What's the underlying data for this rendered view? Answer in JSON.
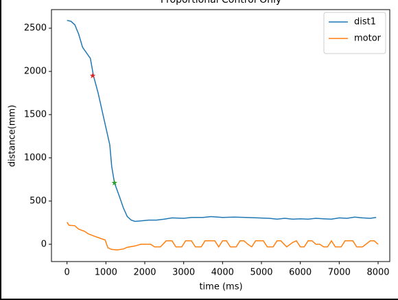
{
  "chart_data": {
    "type": "line",
    "title": "Proportional Control Only",
    "xlabel": "time (ms)",
    "ylabel": "distance(mm)",
    "xlim": [
      -400,
      8300
    ],
    "ylim": [
      -200,
      2715
    ],
    "xticks": [
      0,
      1000,
      2000,
      3000,
      4000,
      5000,
      6000,
      7000,
      8000
    ],
    "yticks": [
      0,
      500,
      1000,
      1500,
      2000,
      2500
    ],
    "legend": "upper right",
    "grid": false,
    "series": [
      {
        "name": "dist1",
        "color": "#1f77b4",
        "x": [
          0,
          100,
          200,
          300,
          400,
          600,
          680,
          800,
          950,
          1100,
          1150,
          1220,
          1350,
          1450,
          1550,
          1650,
          1750,
          1900,
          2100,
          2300,
          2500,
          2700,
          3000,
          3200,
          3500,
          3700,
          4000,
          4300,
          4600,
          4900,
          5200,
          5400,
          5600,
          5800,
          6000,
          6200,
          6400,
          6600,
          6800,
          7000,
          7200,
          7400,
          7600,
          7800,
          7950
        ],
        "values": [
          2590,
          2580,
          2540,
          2430,
          2280,
          2150,
          1950,
          1750,
          1450,
          1150,
          900,
          710,
          550,
          420,
          320,
          280,
          265,
          270,
          280,
          280,
          290,
          305,
          300,
          310,
          310,
          320,
          310,
          315,
          310,
          305,
          300,
          290,
          300,
          290,
          295,
          290,
          300,
          295,
          290,
          305,
          300,
          315,
          305,
          300,
          310
        ]
      },
      {
        "name": "motor",
        "color": "#ff7f0e",
        "x": [
          0,
          50,
          200,
          300,
          450,
          550,
          700,
          850,
          980,
          1050,
          1150,
          1300,
          1450,
          1550,
          1750,
          1900,
          2150,
          2250,
          2400,
          2550,
          2700,
          2800,
          2950,
          3050,
          3200,
          3300,
          3450,
          3550,
          3800,
          3900,
          4000,
          4100,
          4200,
          4350,
          4450,
          4550,
          4650,
          4750,
          4850,
          5050,
          5150,
          5300,
          5400,
          5500,
          5650,
          5800,
          5900,
          6000,
          6100,
          6200,
          6300,
          6400,
          6500,
          6600,
          6700,
          6800,
          6900,
          7050,
          7150,
          7350,
          7450,
          7600,
          7800,
          7900,
          8000
        ],
        "values": [
          255,
          220,
          215,
          175,
          150,
          120,
          95,
          70,
          50,
          -40,
          -60,
          -65,
          -55,
          -35,
          -20,
          0,
          0,
          -30,
          -30,
          40,
          40,
          -30,
          -30,
          40,
          40,
          -30,
          -30,
          40,
          40,
          -30,
          40,
          40,
          -30,
          -30,
          40,
          40,
          0,
          -30,
          40,
          40,
          -30,
          -30,
          40,
          40,
          -30,
          20,
          40,
          -30,
          -30,
          40,
          40,
          0,
          0,
          -30,
          -30,
          40,
          -30,
          -30,
          40,
          40,
          -30,
          -30,
          40,
          40,
          0
        ]
      }
    ],
    "markers": [
      {
        "x": 660,
        "y": 1950,
        "color": "#d62728"
      },
      {
        "x": 1220,
        "y": 710,
        "color": "#2ca02c"
      }
    ]
  }
}
